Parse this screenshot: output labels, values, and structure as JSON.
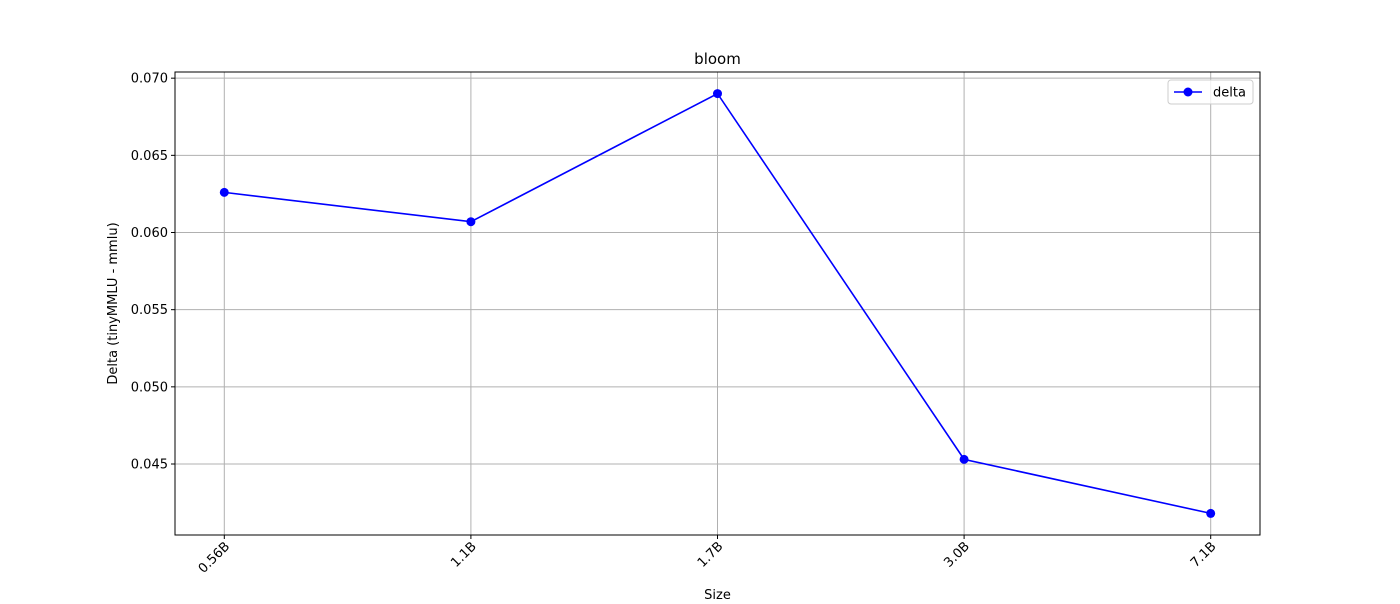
{
  "chart_data": {
    "type": "line",
    "title": "bloom",
    "xlabel": "Size",
    "ylabel": "Delta (tinyMMLU - mmlu)",
    "categories": [
      "0.56B",
      "1.1B",
      "1.7B",
      "3.0B",
      "7.1B"
    ],
    "series": [
      {
        "name": "delta",
        "values": [
          0.0626,
          0.0607,
          0.069,
          0.0453,
          0.0418
        ],
        "color": "#0000ff",
        "marker": "circle"
      }
    ],
    "ylim": [
      0.0404,
      0.0704
    ],
    "yticks": [
      "0.045",
      "0.050",
      "0.055",
      "0.060",
      "0.065",
      "0.070"
    ],
    "grid": true,
    "legend_position": "top-right",
    "x_tick_rotation": "45"
  }
}
